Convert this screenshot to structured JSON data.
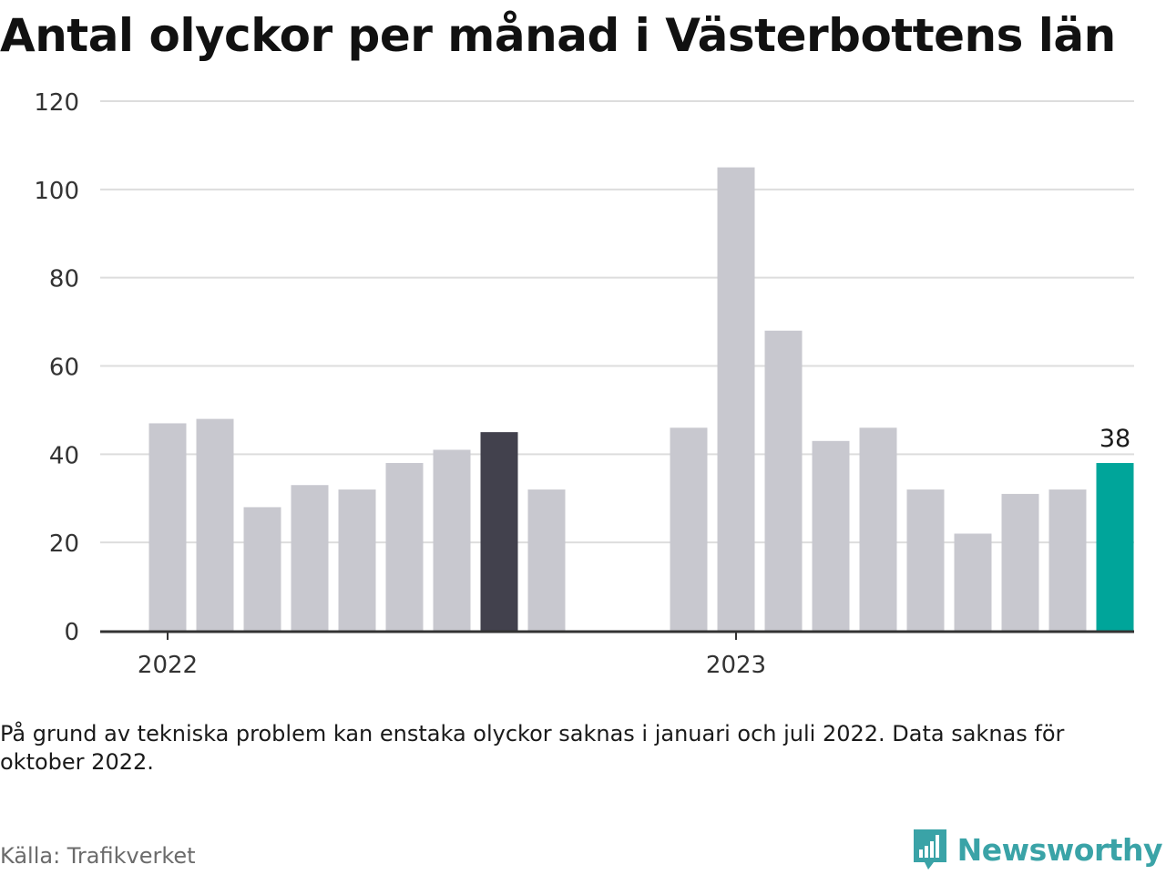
{
  "title": "Antal olyckor per månad i Västerbottens län",
  "note": "På grund av tekniska problem kan enstaka olyckor saknas i januari och juli 2022. Data saknas för oktober 2022.",
  "source": "Källa: Trafikverket",
  "brand": "Newsworthy",
  "colors": {
    "bar": "#c8c8cf",
    "highlight_dark": "#42414d",
    "highlight_latest": "#00a59a",
    "grid": "#dddddd",
    "axis": "#333333",
    "brand": "#3aa3a7"
  },
  "chart_data": {
    "type": "bar",
    "ylim": [
      0,
      120
    ],
    "yticks": [
      "0",
      "20",
      "40",
      "60",
      "80",
      "100",
      "120"
    ],
    "year_labels": [
      {
        "label": "2022",
        "at_month": 0
      },
      {
        "label": "2023",
        "at_month": 12
      }
    ],
    "months": [
      {
        "month": "2022-01",
        "value": 47
      },
      {
        "month": "2022-02",
        "value": 48
      },
      {
        "month": "2022-03",
        "value": 28
      },
      {
        "month": "2022-04",
        "value": 33
      },
      {
        "month": "2022-05",
        "value": 32
      },
      {
        "month": "2022-06",
        "value": 38
      },
      {
        "month": "2022-07",
        "value": 41
      },
      {
        "month": "2022-08",
        "value": 45,
        "highlight": "dark"
      },
      {
        "month": "2022-09",
        "value": 32
      },
      {
        "month": "2022-10",
        "value": null
      },
      {
        "month": "2022-11",
        "value": null
      },
      {
        "month": "2022-12",
        "value": 46
      },
      {
        "month": "2023-01",
        "value": 105
      },
      {
        "month": "2023-02",
        "value": 68
      },
      {
        "month": "2023-03",
        "value": 43
      },
      {
        "month": "2023-04",
        "value": 46
      },
      {
        "month": "2023-05",
        "value": 32
      },
      {
        "month": "2023-06",
        "value": 22
      },
      {
        "month": "2023-07",
        "value": 31
      },
      {
        "month": "2023-08",
        "value": 32
      },
      {
        "month": "2023-09",
        "value": 38,
        "highlight": "latest",
        "label": "38"
      }
    ],
    "grid": true,
    "legend": "none"
  }
}
